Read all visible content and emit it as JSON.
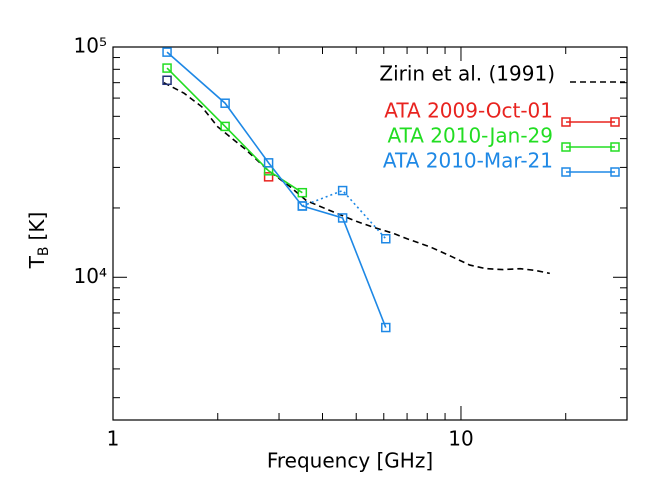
{
  "chart_data": {
    "type": "line",
    "xlabel": "Frequency [GHz]",
    "ylabel": {
      "main": "T",
      "sub": "B",
      "unit": "[K]"
    },
    "xscale": "log",
    "yscale": "log",
    "xlim": [
      1,
      30
    ],
    "ylim": [
      2400,
      100000
    ],
    "xticks": [
      1,
      10
    ],
    "xminor_ticks": [
      2,
      3,
      4,
      5,
      6,
      7,
      8,
      9,
      20,
      30
    ],
    "yticks": [
      {
        "value": 10000,
        "label": "10⁴"
      },
      {
        "value": 100000,
        "label": "10⁵"
      }
    ],
    "yminor_ticks": [
      3000,
      4000,
      5000,
      6000,
      7000,
      8000,
      9000,
      20000,
      30000,
      40000,
      50000,
      60000,
      70000,
      80000,
      90000
    ],
    "series": [
      {
        "name": "Zirin et al. (1991)",
        "color": "#000000",
        "dash": "dashed",
        "marker": false,
        "x": [
          1.4,
          1.6,
          1.8,
          2.0,
          2.4,
          2.8,
          3.2,
          3.6,
          4.2,
          5.0,
          5.6,
          6.4,
          7.0,
          8.2,
          9.4,
          10.6,
          11.8,
          13.2,
          14.8,
          16.4,
          18.0
        ],
        "values": [
          70000,
          63000,
          55000,
          45000,
          36000,
          29000,
          25000,
          21500,
          19500,
          17500,
          16500,
          15500,
          14700,
          13500,
          12300,
          11300,
          10900,
          10800,
          10900,
          10700,
          10400
        ]
      },
      {
        "name": "ATA 2009-Oct-01",
        "color": "#e8231f",
        "dash": "solid",
        "marker": true,
        "x": [
          2.8
        ],
        "values": [
          27300
        ]
      },
      {
        "name": "ATA 2010-Jan-29",
        "color": "#22dd22",
        "dash": "solid",
        "marker": true,
        "x": [
          1.43,
          2.1,
          2.8,
          3.5
        ],
        "values": [
          81000,
          45200,
          29000,
          23300
        ]
      },
      {
        "name": "ATA 2010-Mar-21",
        "color": "#1e88e5",
        "dash": "solid",
        "marker": true,
        "x": [
          1.43,
          2.1,
          2.8,
          3.5,
          4.57,
          6.08
        ],
        "values": [
          95000,
          57000,
          31400,
          20400,
          18100,
          6050
        ]
      },
      {
        "color": "#1e88e5",
        "dash": "dotted",
        "marker": true,
        "x": [
          3.5,
          4.57,
          6.08
        ],
        "values": [
          20400,
          23800,
          14700
        ]
      },
      {
        "color": "#22337a",
        "dash": "none",
        "marker": true,
        "x": [
          1.43
        ],
        "values": [
          71700
        ]
      }
    ]
  }
}
